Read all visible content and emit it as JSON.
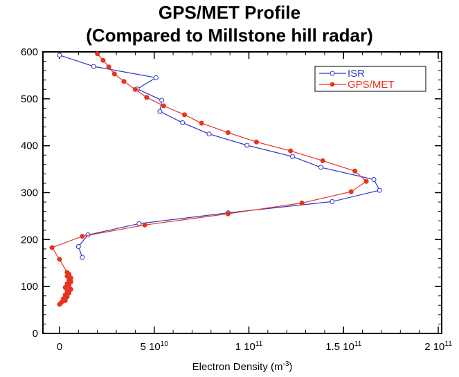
{
  "title_lines": [
    "GPS/MET Profile",
    "(Compared to Millstone hill radar)"
  ],
  "chart_data": {
    "type": "line",
    "title": "GPS/MET Profile (Compared to Millstone hill radar)",
    "xlabel": "Electron Density (m^-3)",
    "xlabel_base": "Electron Density (m",
    "xlabel_exp": "-3",
    "xlabel_close": ")",
    "ylabel": "",
    "xlim": [
      -2000000000.0,
      200000000000.0
    ],
    "ylim": [
      0,
      600
    ],
    "x_ticks": [
      {
        "value": 0,
        "label": "0",
        "exp": ""
      },
      {
        "value": 50000000000.0,
        "label": "5 10",
        "exp": "10"
      },
      {
        "value": 100000000000.0,
        "label": "1 10",
        "exp": "11"
      },
      {
        "value": 150000000000.0,
        "label": "1.5 10",
        "exp": "11"
      },
      {
        "value": 200000000000.0,
        "label": "2 10",
        "exp": "11"
      }
    ],
    "y_ticks": [
      0,
      100,
      200,
      300,
      400,
      500,
      600
    ],
    "grid": false,
    "legend_position": "top-right",
    "series": [
      {
        "name": "ISR",
        "color": "#2a35c8",
        "marker": "open-circle",
        "points": [
          [
            12000000000.0,
            162
          ],
          [
            10000000000.0,
            185
          ],
          [
            15000000000.0,
            210
          ],
          [
            42000000000.0,
            234
          ],
          [
            89000000000.0,
            257
          ],
          [
            144000000000.0,
            281
          ],
          [
            169000000000.0,
            305
          ],
          [
            166000000000.0,
            328
          ],
          [
            138000000000.0,
            354
          ],
          [
            123000000000.0,
            377
          ],
          [
            99000000000.0,
            401
          ],
          [
            79000000000.0,
            425
          ],
          [
            65000000000.0,
            449
          ],
          [
            53000000000.0,
            473
          ],
          [
            54000000000.0,
            497
          ],
          [
            41000000000.0,
            521
          ],
          [
            51000000000.0,
            545
          ],
          [
            18000000000.0,
            569
          ],
          [
            0,
            593
          ]
        ]
      },
      {
        "name": "GPS/MET",
        "color": "#e8331c",
        "marker": "filled-circle",
        "points": [
          [
            0,
            62
          ],
          [
            1000000000.0,
            66
          ],
          [
            3000000000.0,
            70
          ],
          [
            2000000000.0,
            74
          ],
          [
            4000000000.0,
            78
          ],
          [
            3000000000.0,
            82
          ],
          [
            5000000000.0,
            86
          ],
          [
            4000000000.0,
            90
          ],
          [
            6000000000.0,
            94
          ],
          [
            3000000000.0,
            98
          ],
          [
            5000000000.0,
            102
          ],
          [
            4000000000.0,
            106
          ],
          [
            6000000000.0,
            110
          ],
          [
            5000000000.0,
            114
          ],
          [
            6000000000.0,
            118
          ],
          [
            4000000000.0,
            122
          ],
          [
            5000000000.0,
            126
          ],
          [
            4000000000.0,
            130
          ],
          [
            0,
            158
          ],
          [
            -4000000000.0,
            183
          ],
          [
            12000000000.0,
            207
          ],
          [
            45000000000.0,
            231
          ],
          [
            89000000000.0,
            255
          ],
          [
            128000000000.0,
            278
          ],
          [
            154000000000.0,
            302
          ],
          [
            162000000000.0,
            324
          ],
          [
            156000000000.0,
            346
          ],
          [
            139000000000.0,
            368
          ],
          [
            122000000000.0,
            389
          ],
          [
            104000000000.0,
            408
          ],
          [
            89000000000.0,
            428
          ],
          [
            75000000000.0,
            448
          ],
          [
            66000000000.0,
            466
          ],
          [
            55000000000.0,
            485
          ],
          [
            46000000000.0,
            503
          ],
          [
            40000000000.0,
            520
          ],
          [
            34000000000.0,
            537
          ],
          [
            29000000000.0,
            553
          ],
          [
            26000000000.0,
            568
          ],
          [
            23000000000.0,
            582
          ],
          [
            20000000000.0,
            596
          ]
        ]
      }
    ]
  }
}
